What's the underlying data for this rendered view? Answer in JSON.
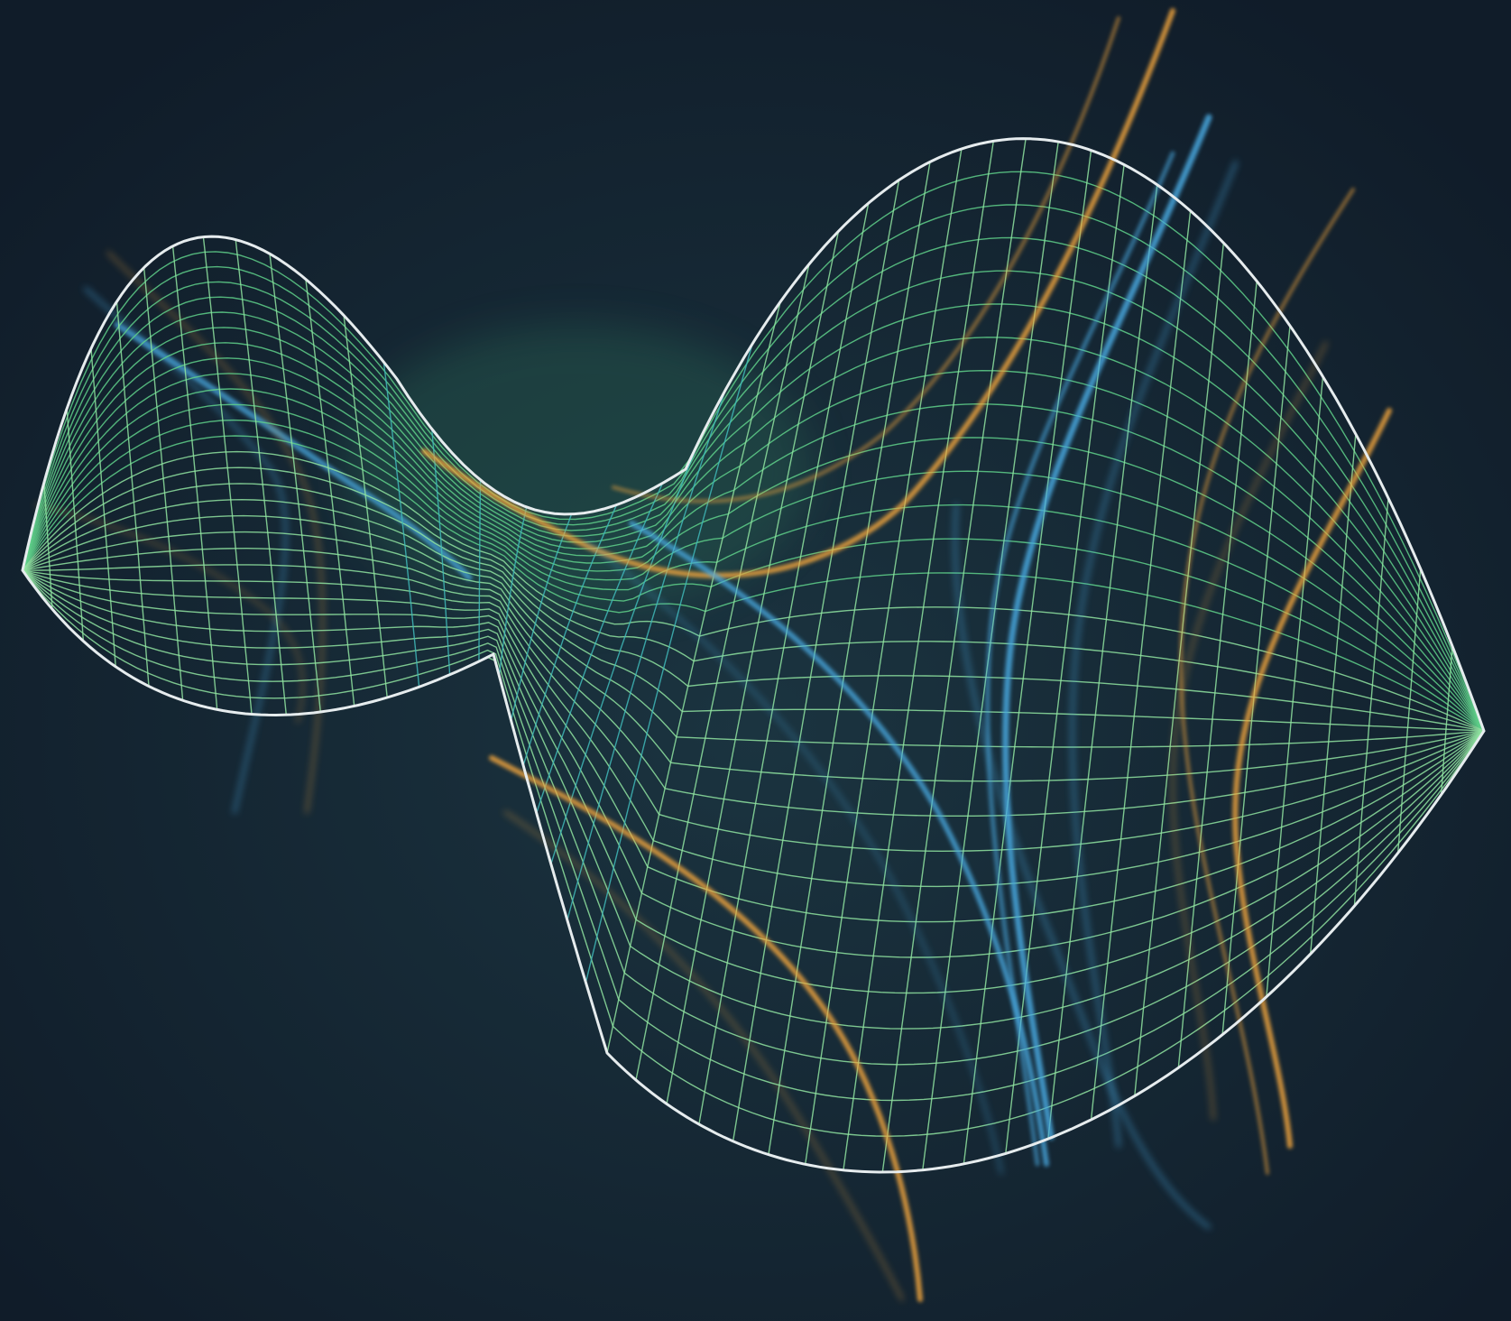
{
  "image": {
    "subject": "saddle-surface-wireframe",
    "colors": {
      "background": "#132231",
      "background_glow": "#1b3440",
      "outline": "#e6ecee",
      "grid_green": "#8fe3a0",
      "grid_teal": "#3fb9b8",
      "grid_back": "#5fd08a",
      "stream_orange": "#f0a43c",
      "stream_blue": "#4aa9e0"
    },
    "grid": {
      "u_divisions": 44,
      "v_divisions": 30
    }
  }
}
